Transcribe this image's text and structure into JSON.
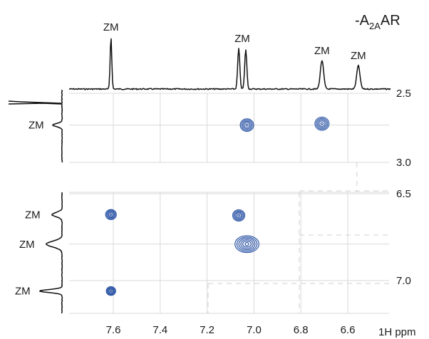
{
  "chart_data": {
    "type": "2D NMR spectrum",
    "title": "-A2AAR",
    "title_parts": {
      "base": "-A",
      "sub": "2A",
      "tail": "AR"
    },
    "xlabel": "1H ppm",
    "x_axis_direction": "decreasing",
    "xlim": [
      7.78,
      6.49
    ],
    "x_ticks": [
      "7.6",
      "7.4",
      "7.2",
      "7.0",
      "6.8",
      "6.6"
    ],
    "grid": true,
    "panels": [
      {
        "name": "upper",
        "ylim": [
          2.5,
          3.0
        ],
        "y_ticks": [
          "2.5",
          "3.0"
        ]
      },
      {
        "name": "lower",
        "ylim": [
          6.5,
          7.2
        ],
        "y_ticks": [
          "6.5",
          "7.0"
        ]
      }
    ],
    "top_projection": {
      "peaks": [
        {
          "ppm": 7.61,
          "height": 1.0,
          "label": "ZM"
        },
        {
          "ppm": 7.065,
          "height": 0.78,
          "label": "ZM"
        },
        {
          "ppm": 7.035,
          "height": 0.76,
          "label": ""
        },
        {
          "ppm": 6.71,
          "height": 0.55,
          "label": "ZM"
        },
        {
          "ppm": 6.555,
          "height": 0.45,
          "label": "ZM"
        }
      ]
    },
    "side_projection_upper": {
      "peaks": [
        {
          "ppm": 2.73,
          "label": "ZM"
        }
      ]
    },
    "side_projection_lower": {
      "peaks": [
        {
          "ppm": 6.62,
          "label": "ZM"
        },
        {
          "ppm": 6.79,
          "label": "ZM"
        },
        {
          "ppm": 7.06,
          "label": "ZM"
        }
      ]
    },
    "cross_peaks": [
      {
        "x": 7.03,
        "y": 2.73,
        "panel": "upper",
        "size": 1.0
      },
      {
        "x": 6.71,
        "y": 2.72,
        "panel": "upper",
        "size": 1.05
      },
      {
        "x": 7.61,
        "y": 6.62,
        "panel": "lower",
        "size": 0.8
      },
      {
        "x": 7.065,
        "y": 6.625,
        "panel": "lower",
        "size": 0.9
      },
      {
        "x": 7.03,
        "y": 6.79,
        "panel": "lower",
        "size": 1.5
      },
      {
        "x": 7.61,
        "y": 7.06,
        "panel": "lower",
        "size": 0.7
      }
    ],
    "colors": {
      "contour": "#2c55a6",
      "trace": "#111111",
      "grid": "#d9d9d9"
    }
  }
}
